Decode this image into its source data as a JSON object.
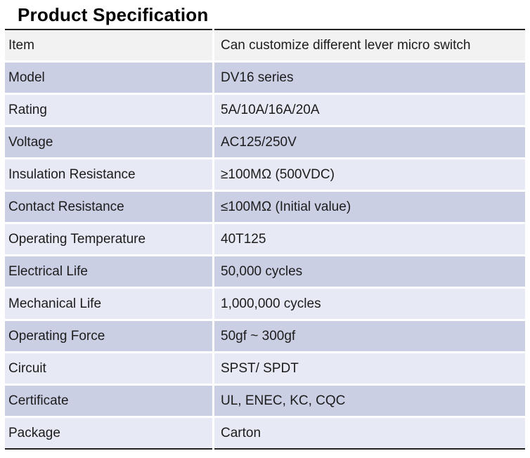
{
  "page_title": "Product Specification",
  "table": {
    "columns": [
      "label",
      "value"
    ],
    "rows": [
      {
        "label": "Item",
        "value": "Can customize different lever micro switch"
      },
      {
        "label": "Model",
        "value": "DV16 series"
      },
      {
        "label": "Rating",
        "value": "5A/10A/16A/20A"
      },
      {
        "label": "Voltage",
        "value": "AC125/250V"
      },
      {
        "label": "Insulation Resistance",
        "value": "≥100MΩ (500VDC)"
      },
      {
        "label": "Contact Resistance",
        "value": "≤100MΩ (Initial value)"
      },
      {
        "label": "Operating Temperature",
        "value": "40T125"
      },
      {
        "label": "Electrical Life",
        "value": "50,000 cycles"
      },
      {
        "label": "Mechanical Life",
        "value": "1,000,000 cycles"
      },
      {
        "label": "Operating Force",
        "value": "50gf ~ 300gf"
      },
      {
        "label": "Circuit",
        "value": "SPST/ SPDT"
      },
      {
        "label": "Certificate",
        "value": "UL, ENEC, KC, CQC"
      },
      {
        "label": "Package",
        "value": "Carton"
      }
    ],
    "colors": {
      "row_first_bg": "#f2f2f2",
      "row_medium_bg": "#cbcfe4",
      "row_light_bg": "#e7e9f4",
      "border": "#212121",
      "cell_text": "#1c1c1c",
      "title_text": "#000000"
    }
  }
}
